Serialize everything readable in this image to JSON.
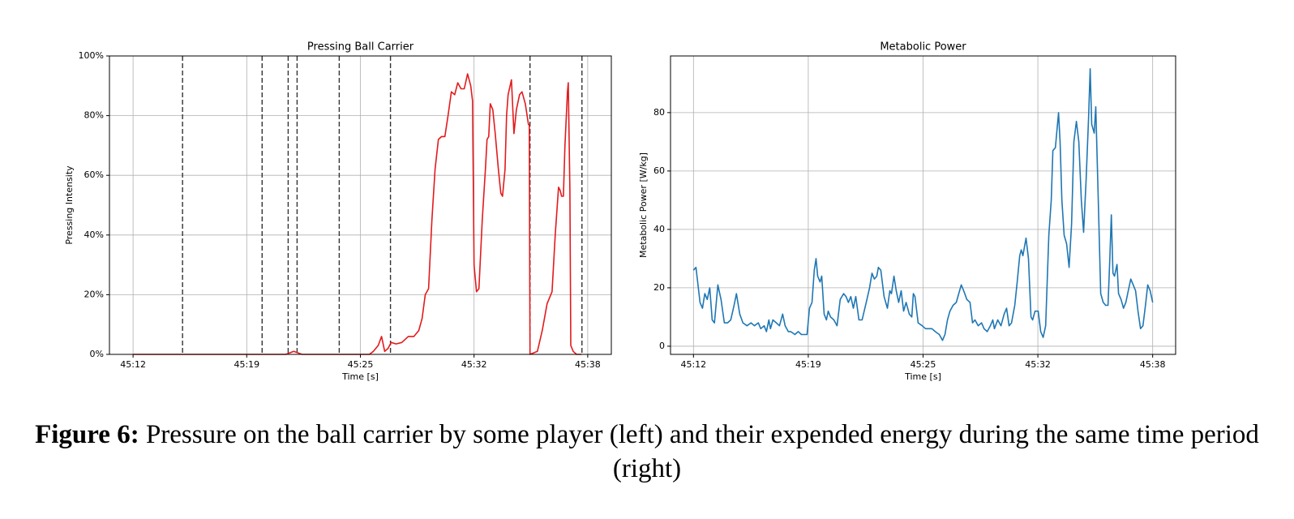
{
  "chart_data": [
    {
      "type": "line",
      "title": "Pressing Ball Carrier",
      "xlabel": "Time [s]",
      "ylabel": "Pressing Intensity",
      "color": "#e31a1c",
      "grid": true,
      "xlim": [
        10.65,
        39.35
      ],
      "ylim": [
        0,
        100
      ],
      "xticks": [
        {
          "value": 12,
          "label": "45:12"
        },
        {
          "value": 18.5,
          "label": "45:19"
        },
        {
          "value": 25,
          "label": "45:25"
        },
        {
          "value": 31.5,
          "label": "45:32"
        },
        {
          "value": 38,
          "label": "45:38"
        }
      ],
      "yticks": [
        {
          "value": 0,
          "label": "0%"
        },
        {
          "value": 20,
          "label": "20%"
        },
        {
          "value": 40,
          "label": "40%"
        },
        {
          "value": 60,
          "label": "60%"
        },
        {
          "value": 80,
          "label": "80%"
        },
        {
          "value": 100,
          "label": "100%"
        }
      ],
      "vlines": [
        14.83,
        19.38,
        20.87,
        21.38,
        23.79,
        26.72,
        34.7,
        37.67
      ],
      "x": [
        12.0,
        20.73,
        21.19,
        21.66,
        25.51,
        25.74,
        26.02,
        26.21,
        26.39,
        26.58,
        26.76,
        27.04,
        27.37,
        27.74,
        28.06,
        28.34,
        28.53,
        28.71,
        28.9,
        29.09,
        29.27,
        29.46,
        29.64,
        29.83,
        30.01,
        30.2,
        30.39,
        30.57,
        30.76,
        30.94,
        31.13,
        31.31,
        31.41,
        31.5,
        31.64,
        31.78,
        31.97,
        32.15,
        32.24,
        32.34,
        32.43,
        32.57,
        32.71,
        32.89,
        33.03,
        33.13,
        33.27,
        33.36,
        33.45,
        33.64,
        33.78,
        33.92,
        34.1,
        34.24,
        34.43,
        34.61,
        34.66,
        34.7,
        35.12,
        35.4,
        35.68,
        35.96,
        36.14,
        36.33,
        36.42,
        36.51,
        36.61,
        36.7,
        36.84,
        36.89,
        36.98,
        37.03,
        37.17,
        37.36,
        37.64
      ],
      "values": [
        0,
        0,
        1,
        0,
        0,
        1,
        3,
        6,
        1,
        2,
        4,
        3.5,
        4,
        6,
        6,
        8,
        12,
        20,
        22,
        45,
        62,
        72,
        73,
        73,
        80,
        88,
        87,
        91,
        89,
        89,
        94,
        90,
        85,
        30,
        21,
        22,
        45,
        62,
        72,
        73,
        84,
        82,
        74,
        62,
        54,
        53,
        62,
        80,
        87,
        92,
        74,
        82,
        87,
        88,
        84,
        77,
        77,
        0,
        1,
        8,
        17,
        21,
        40,
        56,
        55,
        53,
        53,
        70,
        88,
        91,
        55,
        3,
        1,
        0,
        0
      ]
    },
    {
      "type": "line",
      "title": "Metabolic Power",
      "xlabel": "Time [s]",
      "ylabel": "Metabolic Power [W/kg]",
      "color": "#1f77b4",
      "grid": true,
      "xlim": [
        10.7,
        39.3
      ],
      "ylim": [
        -2.8,
        99.4
      ],
      "xticks": [
        {
          "value": 12,
          "label": "45:12"
        },
        {
          "value": 18.5,
          "label": "45:19"
        },
        {
          "value": 25,
          "label": "45:25"
        },
        {
          "value": 31.5,
          "label": "45:32"
        },
        {
          "value": 38,
          "label": "45:38"
        }
      ],
      "yticks": [
        0,
        20,
        40,
        60,
        80
      ],
      "x": [
        12.0,
        12.14,
        12.37,
        12.51,
        12.64,
        12.78,
        12.92,
        13.06,
        13.19,
        13.38,
        13.56,
        13.75,
        13.93,
        14.11,
        14.3,
        14.43,
        14.62,
        14.8,
        15.03,
        15.26,
        15.45,
        15.67,
        15.81,
        16.0,
        16.13,
        16.27,
        16.36,
        16.5,
        16.69,
        16.87,
        17.05,
        17.19,
        17.37,
        17.51,
        17.74,
        17.93,
        18.11,
        18.43,
        18.57,
        18.71,
        18.84,
        18.94,
        19.03,
        19.17,
        19.26,
        19.4,
        19.53,
        19.63,
        19.76,
        19.95,
        20.13,
        20.31,
        20.5,
        20.64,
        20.77,
        20.91,
        21.05,
        21.19,
        21.37,
        21.55,
        21.78,
        21.97,
        22.11,
        22.24,
        22.38,
        22.47,
        22.61,
        22.79,
        22.98,
        23.12,
        23.21,
        23.35,
        23.48,
        23.62,
        23.76,
        23.9,
        24.04,
        24.22,
        24.36,
        24.45,
        24.54,
        24.72,
        24.95,
        25.14,
        25.32,
        25.5,
        25.69,
        25.92,
        26.1,
        26.24,
        26.38,
        26.52,
        26.7,
        26.88,
        27.02,
        27.16,
        27.3,
        27.48,
        27.66,
        27.8,
        27.94,
        28.12,
        28.31,
        28.45,
        28.63,
        28.81,
        28.95,
        29.04,
        29.23,
        29.41,
        29.59,
        29.73,
        29.87,
        30.01,
        30.19,
        30.33,
        30.47,
        30.56,
        30.65,
        30.83,
        30.97,
        31.11,
        31.2,
        31.34,
        31.52,
        31.66,
        31.8,
        31.94,
        32.12,
        32.26,
        32.35,
        32.49,
        32.67,
        32.76,
        32.86,
        32.99,
        33.13,
        33.27,
        33.41,
        33.54,
        33.68,
        33.82,
        33.96,
        34.09,
        34.23,
        34.37,
        34.46,
        34.55,
        34.69,
        34.78,
        34.92,
        35.06,
        35.2,
        35.34,
        35.47,
        35.57,
        35.66,
        35.75,
        35.84,
        35.98,
        36.07,
        36.21,
        36.35,
        36.48,
        36.62,
        36.76,
        36.9,
        37.03,
        37.17,
        37.31,
        37.45,
        37.59,
        37.72,
        37.86,
        38.0
      ],
      "values": [
        26,
        27,
        15,
        13,
        18,
        16,
        20,
        9,
        8,
        21,
        16,
        8,
        8,
        9,
        14,
        18,
        11,
        8,
        7,
        8,
        7,
        8,
        6,
        7,
        5,
        9,
        6,
        9,
        8,
        7,
        11,
        7,
        5,
        5,
        4,
        5,
        4,
        4,
        13,
        15,
        26,
        30,
        24,
        22,
        24,
        11,
        9,
        12,
        10,
        9,
        7,
        16,
        18,
        17,
        15,
        17,
        13,
        17,
        9,
        9,
        15,
        20,
        25,
        23,
        24,
        27,
        26,
        17,
        13,
        19,
        18,
        24,
        19,
        15,
        19,
        12,
        15,
        11,
        10,
        18,
        17,
        8,
        7,
        6,
        6,
        6,
        5,
        4,
        2,
        4,
        9,
        12,
        14,
        15,
        18,
        21,
        19,
        16,
        15,
        8,
        9,
        7,
        8,
        6,
        5,
        7,
        9,
        6,
        9,
        7,
        11,
        13,
        7,
        8,
        14,
        22,
        31,
        33,
        31,
        37,
        30,
        10,
        9,
        12,
        12,
        5,
        3,
        7,
        38,
        50,
        67,
        68,
        80,
        70,
        50,
        38,
        35,
        27,
        42,
        70,
        77,
        70,
        50,
        39,
        57,
        78,
        95,
        76,
        73,
        82,
        50,
        18,
        15,
        14,
        14,
        29,
        45,
        25,
        24,
        28,
        18,
        16,
        13,
        15,
        19,
        23,
        21,
        19,
        12,
        6,
        7,
        14,
        21,
        19,
        15
      ]
    }
  ],
  "caption": {
    "label": "Figure 6:",
    "text": "Pressure on the ball carrier by some player (left) and their expended energy during the same time period (right)"
  }
}
